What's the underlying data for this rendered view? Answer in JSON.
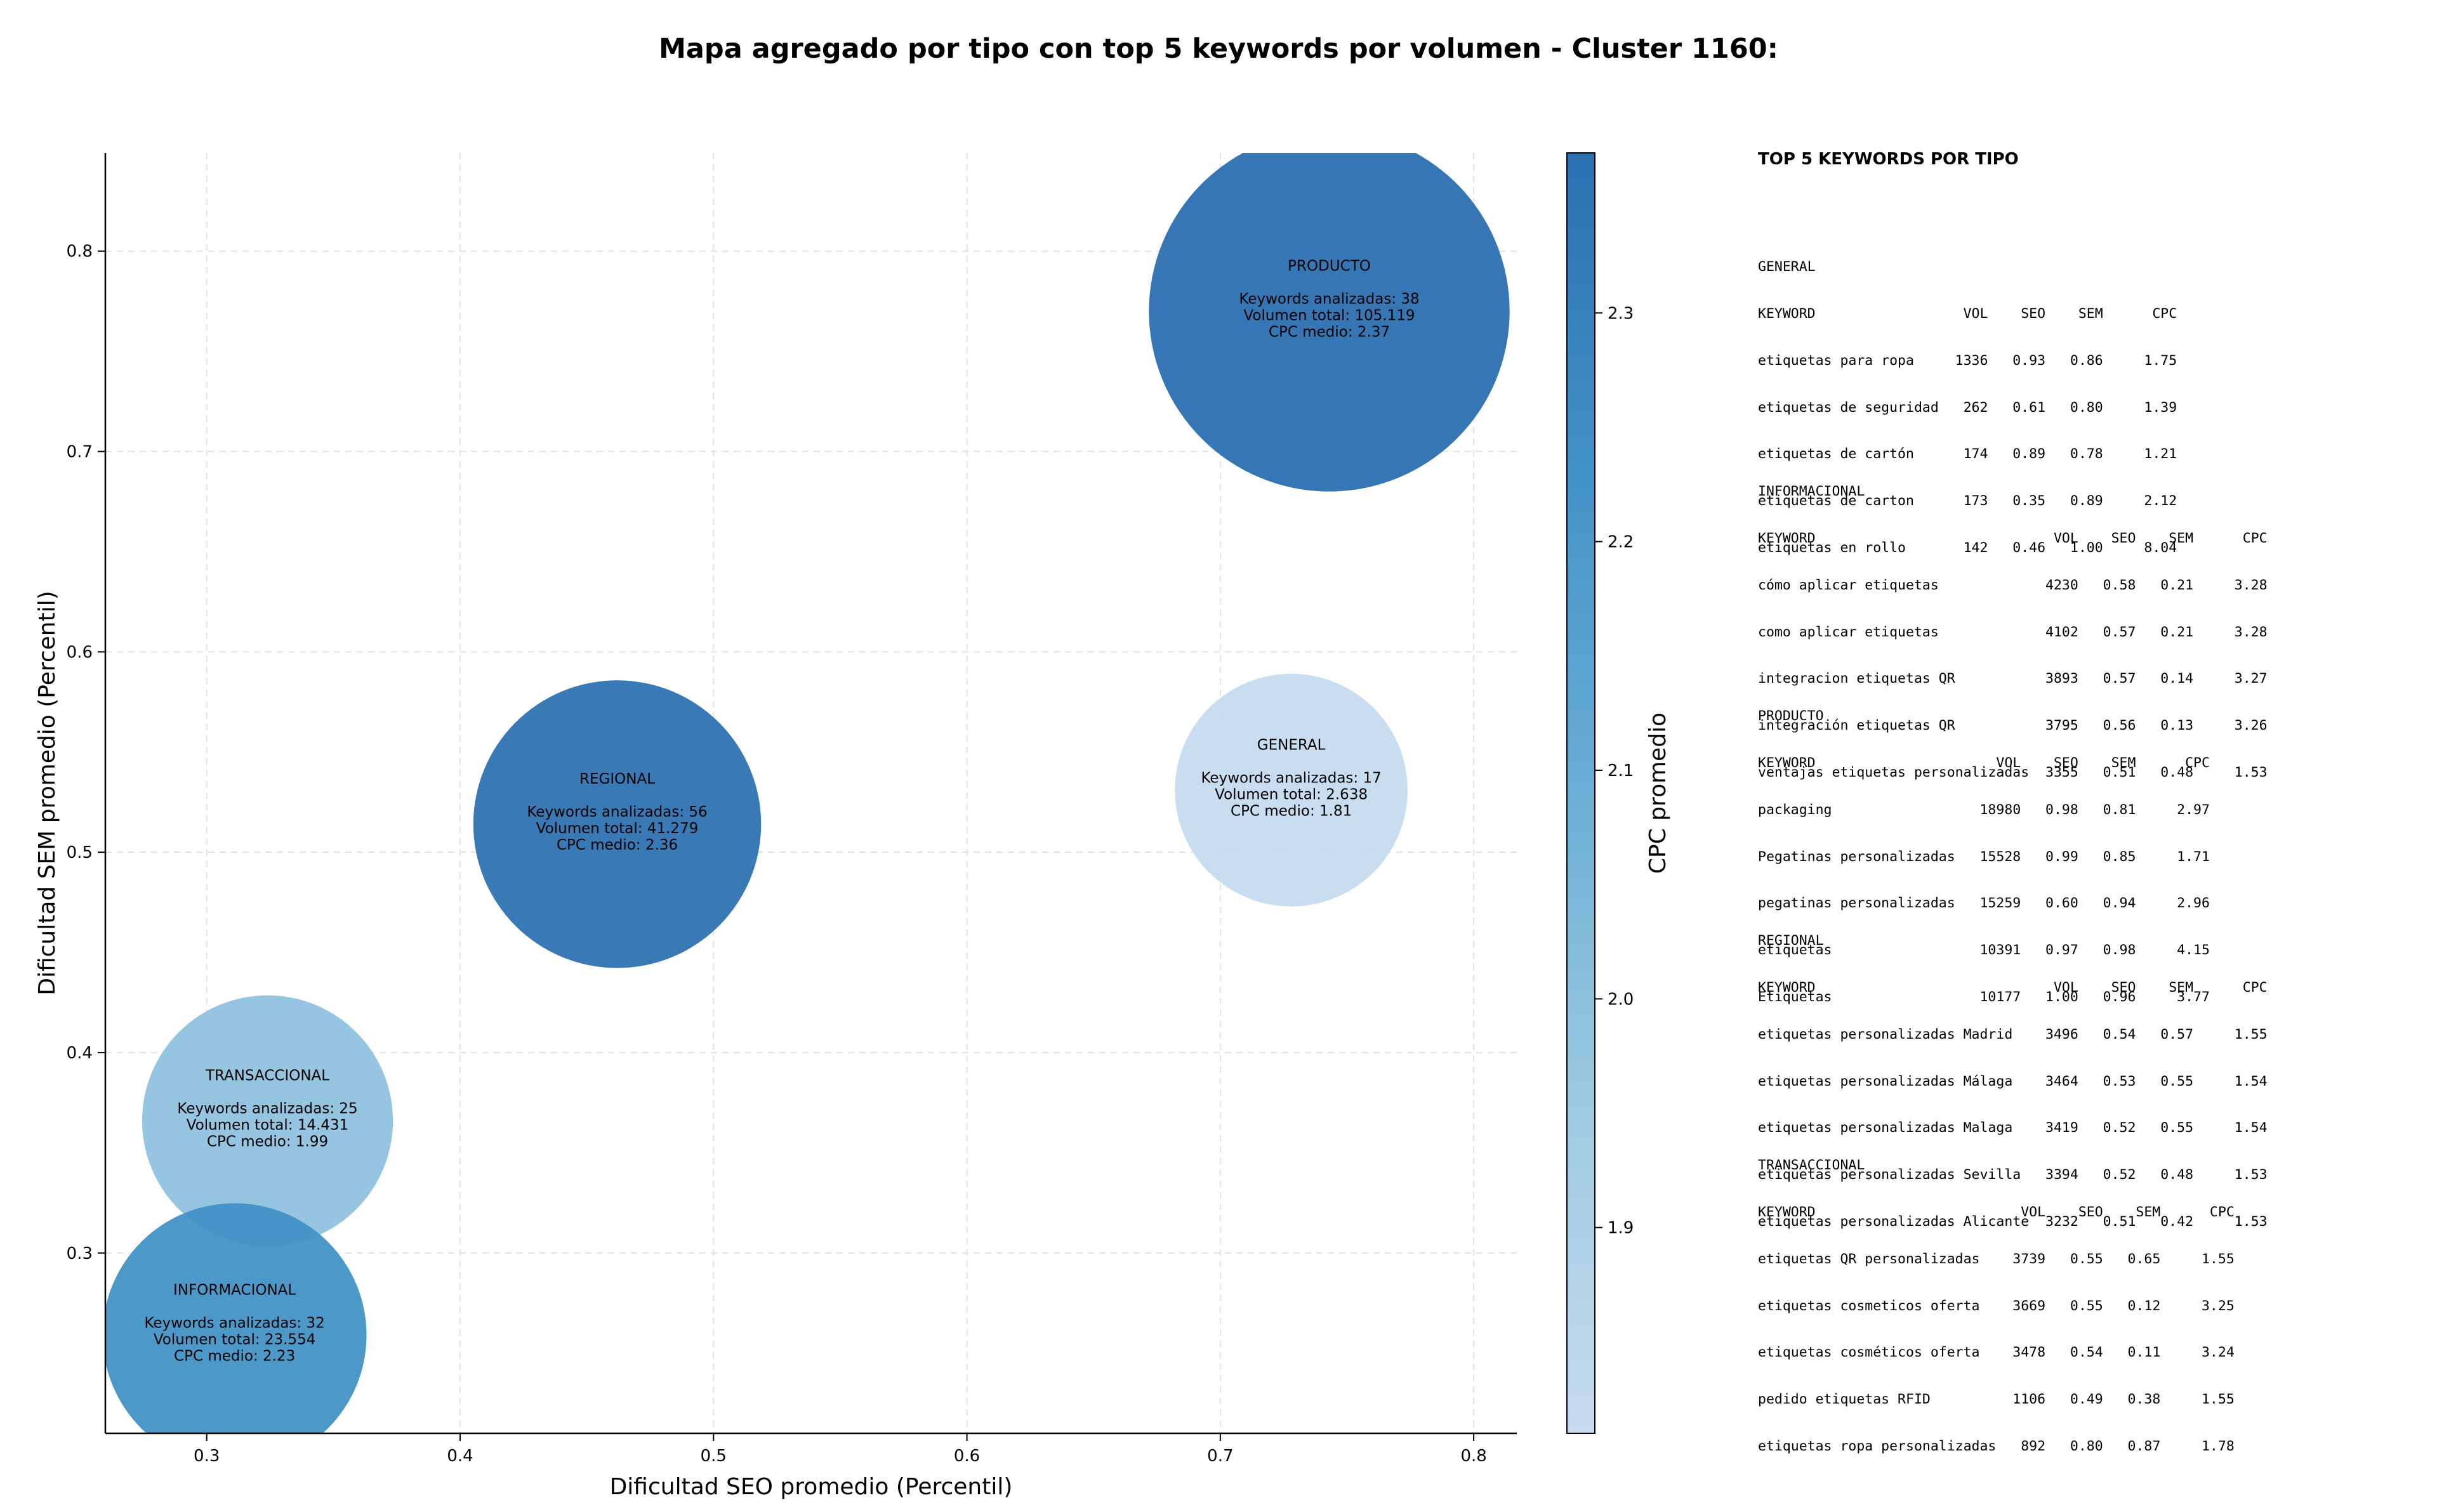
{
  "title": "Mapa agregado por tipo con top 5 keywords por volumen - Cluster 1160:",
  "chart_data": {
    "type": "scatter",
    "xlabel": "Dificultad SEO promedio (Percentil)",
    "ylabel": "Dificultad SEM promedio (Percentil)",
    "xlim": [
      0.26,
      0.817
    ],
    "ylim": [
      0.21,
      0.849
    ],
    "x_ticks": [
      "0.3",
      "0.4",
      "0.5",
      "0.6",
      "0.7",
      "0.8"
    ],
    "y_ticks": [
      "0.3",
      "0.4",
      "0.5",
      "0.6",
      "0.7",
      "0.8"
    ],
    "grid": true,
    "bubble_size": "Volumen total",
    "color": "CPC medio",
    "points": [
      {
        "name": "PRODUCTO",
        "x": 0.743,
        "y": 0.77,
        "keywords": 38,
        "volume": 105119,
        "cpc": 2.37,
        "lines": [
          "Keywords analizadas: 38",
          "Volumen total: 105.119",
          "CPC medio: 2.37"
        ]
      },
      {
        "name": "GENERAL",
        "x": 0.728,
        "y": 0.531,
        "keywords": 17,
        "volume": 2638,
        "cpc": 1.81,
        "lines": [
          "Keywords analizadas: 17",
          "Volumen total: 2.638",
          "CPC medio: 1.81"
        ]
      },
      {
        "name": "REGIONAL",
        "x": 0.462,
        "y": 0.514,
        "keywords": 56,
        "volume": 41279,
        "cpc": 2.36,
        "lines": [
          "Keywords analizadas: 56",
          "Volumen total: 41.279",
          "CPC medio: 2.36"
        ]
      },
      {
        "name": "TRANSACCIONAL",
        "x": 0.324,
        "y": 0.366,
        "keywords": 25,
        "volume": 14431,
        "cpc": 1.99,
        "lines": [
          "Keywords analizadas: 25",
          "Volumen total: 14.431",
          "CPC medio: 1.99"
        ]
      },
      {
        "name": "INFORMACIONAL",
        "x": 0.311,
        "y": 0.259,
        "keywords": 32,
        "volume": 23554,
        "cpc": 2.23,
        "lines": [
          "Keywords analizadas: 32",
          "Volumen total: 23.554",
          "CPC medio: 2.23"
        ]
      }
    ],
    "colorbar": {
      "label": "CPC promedio",
      "range": [
        1.81,
        2.37
      ],
      "ticks": [
        "1.9",
        "2.0",
        "2.1",
        "2.2",
        "2.3"
      ],
      "colors": [
        "#c6dbef",
        "#9ecae1",
        "#6baed6",
        "#4292c6",
        "#2b6fb0"
      ]
    }
  },
  "side_panel": {
    "heading": "TOP 5 KEYWORDS POR TIPO",
    "blocks": [
      {
        "name": "GENERAL",
        "lines": [
          "GENERAL",
          "KEYWORD                  VOL    SEO    SEM      CPC",
          "etiquetas para ropa     1336   0.93   0.86     1.75",
          "etiquetas de seguridad   262   0.61   0.80     1.39",
          "etiquetas de cartón      174   0.89   0.78     1.21",
          "etiquetas de carton      173   0.35   0.89     2.12",
          "etiquetas en rollo       142   0.46   1.00     8.04"
        ]
      },
      {
        "name": "INFORMACIONAL",
        "lines": [
          "INFORMACIONAL",
          "KEYWORD                             VOL    SEO    SEM      CPC",
          "cómo aplicar etiquetas             4230   0.58   0.21     3.28",
          "como aplicar etiquetas             4102   0.57   0.21     3.28",
          "integracion etiquetas QR           3893   0.57   0.14     3.27",
          "integración etiquetas QR           3795   0.56   0.13     3.26",
          "ventajas etiquetas personalizadas  3355   0.51   0.48     1.53"
        ]
      },
      {
        "name": "PRODUCTO",
        "lines": [
          "PRODUCTO",
          "KEYWORD                      VOL    SEO    SEM      CPC",
          "packaging                  18980   0.98   0.81     2.97",
          "Pegatinas personalizadas   15528   0.99   0.85     1.71",
          "pegatinas personalizadas   15259   0.60   0.94     2.96",
          "etiquetas                  10391   0.97   0.98     4.15",
          "Etiquetas                  10177   1.00   0.96     3.77"
        ]
      },
      {
        "name": "REGIONAL",
        "lines": [
          "REGIONAL",
          "KEYWORD                             VOL    SEO    SEM      CPC",
          "etiquetas personalizadas Madrid    3496   0.54   0.57     1.55",
          "etiquetas personalizadas Málaga    3464   0.53   0.55     1.54",
          "etiquetas personalizadas Malaga    3419   0.52   0.55     1.54",
          "etiquetas personalizadas Sevilla   3394   0.52   0.48     1.53",
          "etiquetas personalizadas Alicante  3232   0.51   0.42     1.53"
        ]
      },
      {
        "name": "TRANSACCIONAL",
        "lines": [
          "TRANSACCIONAL",
          "KEYWORD                         VOL    SEO    SEM      CPC",
          "etiquetas QR personalizadas    3739   0.55   0.65     1.55",
          "etiquetas cosmeticos oferta    3669   0.55   0.12     3.25",
          "etiquetas cosméticos oferta    3478   0.54   0.11     3.24",
          "pedido etiquetas RFID          1106   0.49   0.38     1.55",
          "etiquetas ropa personalizadas   892   0.80   0.87     1.78"
        ]
      }
    ]
  }
}
